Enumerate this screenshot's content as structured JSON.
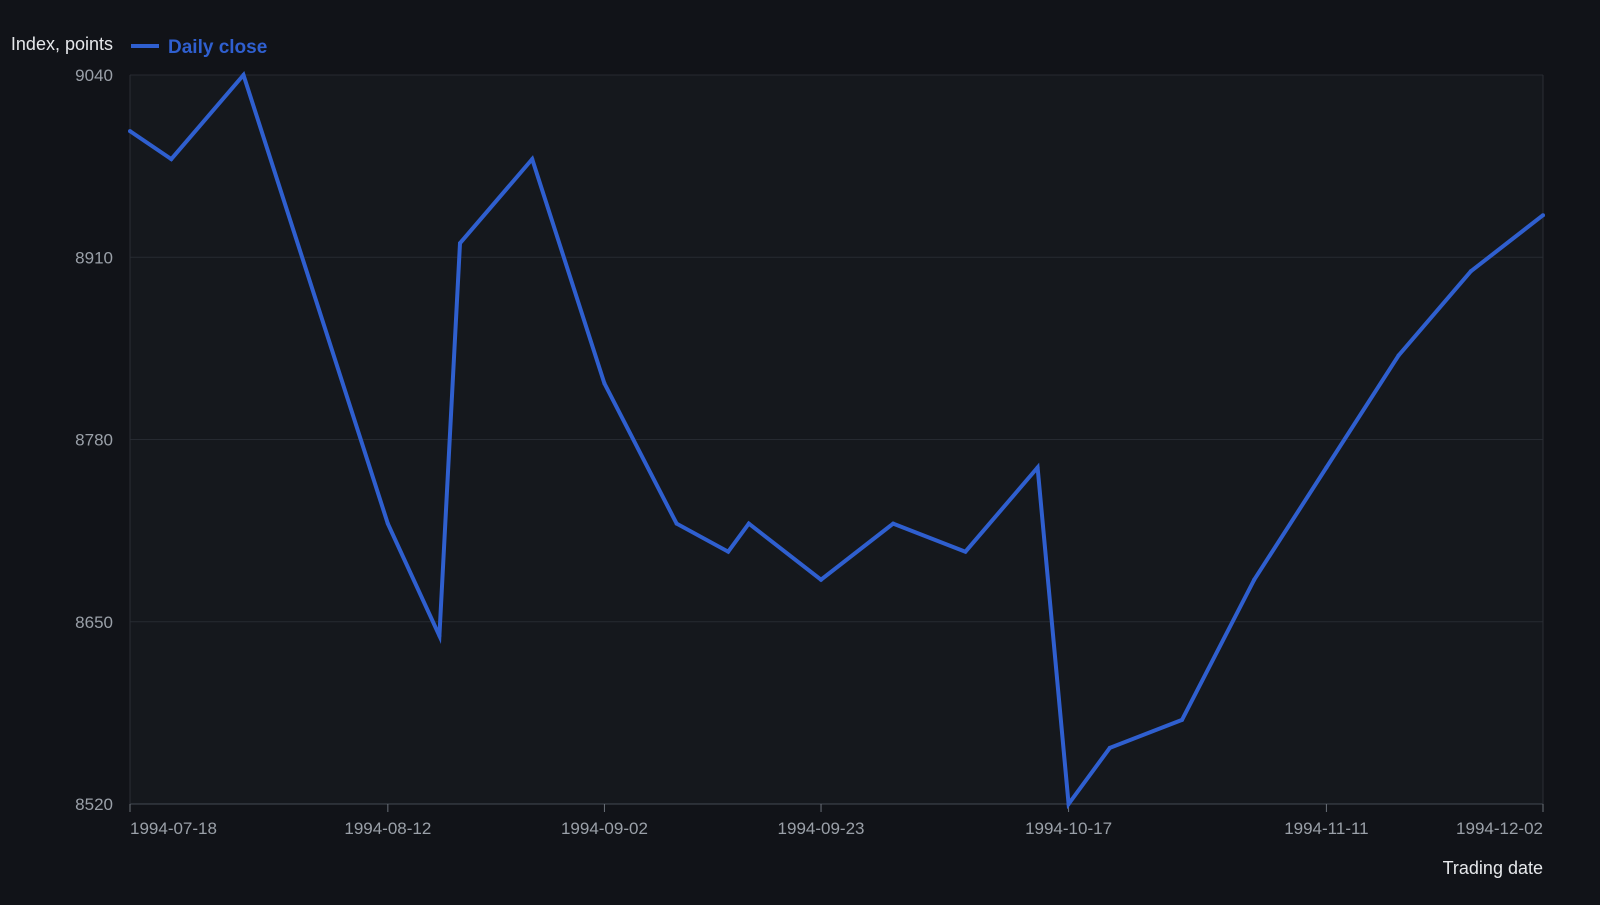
{
  "chart_data": {
    "type": "line",
    "ylabel": "Index, points",
    "xlabel": "Trading date",
    "legend": {
      "position": "top-left",
      "entries": [
        "Daily close"
      ]
    },
    "ylim": [
      8520,
      9040
    ],
    "yticks": [
      8520,
      8650,
      8780,
      8910,
      9040
    ],
    "xlim": [
      "1994-07-18",
      "1994-12-02"
    ],
    "xticks": [
      "1994-07-18",
      "1994-08-12",
      "1994-09-02",
      "1994-09-23",
      "1994-10-17",
      "1994-11-11",
      "1994-12-02"
    ],
    "grid": {
      "horizontal": true,
      "vertical": false
    },
    "colors": {
      "series": "#2f5fcf",
      "background": "#111318",
      "plot_background": "#15181d",
      "grid": "#262a31",
      "text": "#9aa0a8"
    },
    "series": [
      {
        "name": "Daily close",
        "x": [
          "1994-07-18",
          "1994-07-22",
          "1994-07-29",
          "1994-08-12",
          "1994-08-17",
          "1994-08-19",
          "1994-08-26",
          "1994-09-02",
          "1994-09-09",
          "1994-09-14",
          "1994-09-16",
          "1994-09-23",
          "1994-09-30",
          "1994-10-07",
          "1994-10-14",
          "1994-10-17",
          "1994-10-21",
          "1994-10-28",
          "1994-11-04",
          "1994-11-11",
          "1994-11-18",
          "1994-11-25",
          "1994-12-02"
        ],
        "values": [
          9000,
          8980,
          9040,
          8720,
          8640,
          8920,
          8980,
          8820,
          8720,
          8700,
          8720,
          8680,
          8720,
          8700,
          8760,
          8520,
          8560,
          8580,
          8680,
          8760,
          8840,
          8900,
          8940
        ]
      }
    ]
  }
}
